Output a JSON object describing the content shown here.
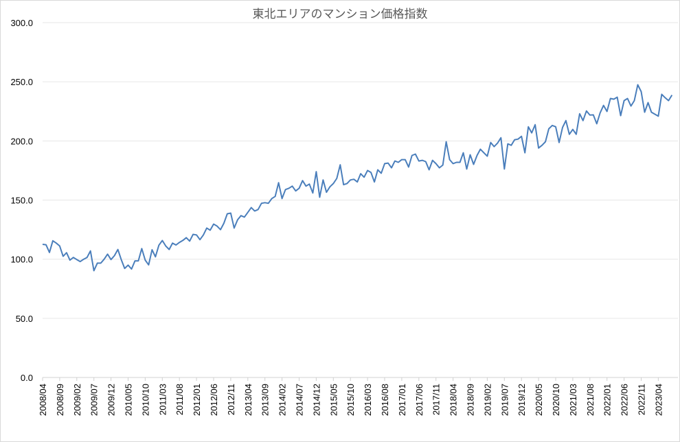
{
  "chart_data": {
    "type": "line",
    "title": "東北エリアのマンション価格指数",
    "xlabel": "",
    "ylabel": "",
    "ylim": [
      0,
      300
    ],
    "yticks": [
      "0.0",
      "50.0",
      "100.0",
      "150.0",
      "200.0",
      "250.0",
      "300.0"
    ],
    "grid": true,
    "legend": "none",
    "line_color": "#4a7ebb",
    "x_start": "2008/04",
    "x_end": "2023/09",
    "x_tick_labels": [
      "2008/04",
      "2008/09",
      "2009/02",
      "2009/07",
      "2009/12",
      "2010/05",
      "2010/10",
      "2011/03",
      "2011/08",
      "2012/01",
      "2012/06",
      "2012/11",
      "2013/04",
      "2013/09",
      "2014/02",
      "2014/07",
      "2014/12",
      "2015/05",
      "2015/10",
      "2016/03",
      "2016/08",
      "2017/01",
      "2017/06",
      "2017/11",
      "2018/04",
      "2018/09",
      "2019/02",
      "2019/07",
      "2019/12",
      "2020/05",
      "2020/10",
      "2021/03",
      "2021/08",
      "2022/01",
      "2022/06",
      "2022/11",
      "2023/04"
    ],
    "series": [
      {
        "name": "東北エリアのマンション価格指数",
        "values": [
          112.6,
          112.2,
          105.7,
          115.6,
          113.6,
          111.2,
          102.5,
          105.5,
          99.2,
          101.5,
          99.7,
          98.0,
          100.0,
          101.5,
          107.0,
          90.3,
          96.7,
          96.7,
          100.0,
          104.3,
          99.7,
          103.0,
          108.2,
          99.7,
          92.2,
          95.0,
          91.7,
          98.6,
          98.6,
          109.0,
          99.2,
          95.2,
          108.0,
          102.0,
          111.8,
          115.8,
          111.2,
          108.2,
          113.6,
          112.0,
          114.2,
          115.9,
          118.2,
          115.3,
          121.0,
          120.5,
          116.5,
          120.5,
          126.3,
          124.5,
          129.7,
          128.0,
          125.0,
          130.3,
          138.4,
          139.0,
          126.3,
          133.3,
          136.8,
          135.6,
          139.6,
          143.7,
          140.8,
          142.0,
          147.3,
          147.8,
          147.3,
          151.3,
          153.1,
          164.7,
          151.3,
          158.9,
          160.0,
          161.8,
          157.7,
          160.0,
          166.4,
          161.8,
          163.5,
          156.0,
          174.0,
          152.4,
          167.0,
          156.6,
          161.2,
          164.0,
          168.3,
          179.8,
          163.0,
          164.0,
          167.0,
          167.6,
          165.3,
          172.3,
          169.3,
          175.0,
          173.3,
          165.3,
          175.6,
          172.7,
          180.8,
          181.3,
          177.3,
          183.0,
          181.9,
          184.2,
          184.2,
          177.9,
          187.7,
          188.9,
          183.0,
          183.6,
          182.5,
          175.6,
          183.6,
          180.8,
          177.3,
          179.6,
          199.3,
          184.2,
          180.8,
          181.9,
          181.9,
          190.0,
          176.2,
          188.3,
          180.2,
          187.7,
          193.0,
          190.0,
          187.1,
          198.7,
          195.2,
          198.1,
          202.7,
          176.2,
          197.5,
          196.3,
          201.0,
          201.5,
          203.9,
          190.0,
          212.0,
          206.8,
          213.7,
          194.0,
          196.3,
          199.3,
          210.3,
          213.1,
          212.0,
          198.7,
          211.4,
          217.2,
          205.6,
          209.7,
          205.6,
          223.0,
          217.2,
          225.3,
          221.9,
          222.0,
          214.5,
          223.7,
          230.0,
          224.9,
          235.9,
          235.3,
          237.0,
          221.4,
          234.1,
          235.9,
          229.5,
          234.1,
          247.5,
          241.7,
          224.3,
          232.4,
          224.3,
          222.6,
          220.9,
          239.4,
          236.5,
          234.1,
          238.8
        ]
      }
    ]
  }
}
